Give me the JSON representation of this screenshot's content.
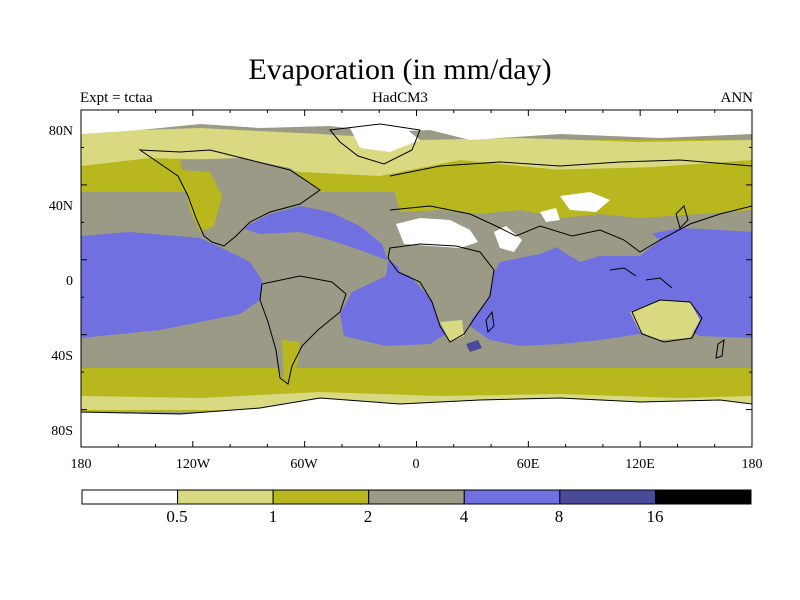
{
  "header": {
    "title": "Evaporation (in mm/day)",
    "left": "Expt = tctaa",
    "center": "HadCM3",
    "right": "ANN"
  },
  "axes": {
    "lon_ticks": [
      "180",
      "120W",
      "60W",
      "0",
      "60E",
      "120E",
      "180"
    ],
    "lat_ticks": [
      "80N",
      "40N",
      "0",
      "40S",
      "80S"
    ]
  },
  "legend": {
    "levels": [
      "0.5",
      "1",
      "2",
      "4",
      "8",
      "16"
    ],
    "colors": [
      "#ffffff",
      "#d8d980",
      "#b8b81e",
      "#9a9a86",
      "#7070e0",
      "#4a4a9c",
      "#000000"
    ]
  },
  "map_colors": {
    "ocean_tropical": "#7070e0",
    "ocean_mid": "#9a9a86",
    "high_lat": "#b8b81e",
    "polar_light": "#d8d980",
    "polar_ice": "#ffffff",
    "desert": "#ffffff",
    "dark_patch": "#4a4a9c"
  }
}
